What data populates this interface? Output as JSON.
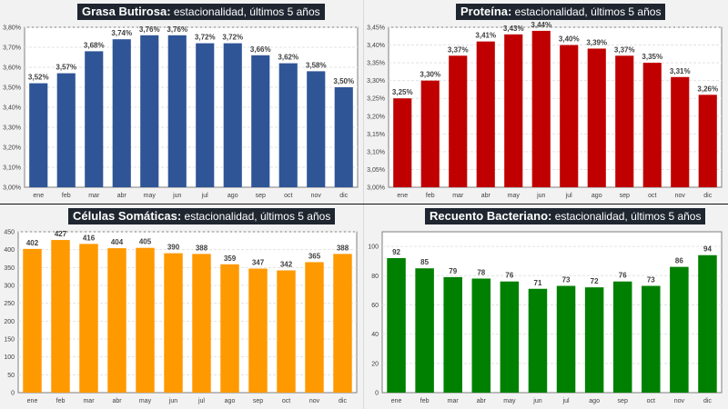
{
  "chart_data": [
    {
      "type": "bar",
      "title_bold": "Grasa Butirosa:",
      "title_rest": " estacionalidad, últimos 5 años",
      "categories": [
        "ene",
        "feb",
        "mar",
        "abr",
        "may",
        "jun",
        "jul",
        "ago",
        "sep",
        "oct",
        "nov",
        "dic"
      ],
      "values": [
        3.52,
        3.57,
        3.68,
        3.74,
        3.76,
        3.76,
        3.72,
        3.72,
        3.66,
        3.62,
        3.58,
        3.5
      ],
      "value_labels": [
        "3,52%",
        "3,57%",
        "3,68%",
        "3,74%",
        "3,76%",
        "3,76%",
        "3,72%",
        "3,72%",
        "3,66%",
        "3,62%",
        "3,58%",
        "3,50%"
      ],
      "yticks": [
        3.0,
        3.1,
        3.2,
        3.3,
        3.4,
        3.5,
        3.6,
        3.7,
        3.8
      ],
      "ytick_labels": [
        "3,00%",
        "3,10%",
        "3,20%",
        "3,30%",
        "3,40%",
        "3,50%",
        "3,60%",
        "3,70%",
        "3,80%"
      ],
      "ylim": [
        3.0,
        3.8
      ],
      "color": "#2f5597",
      "xlabel": "",
      "ylabel": "",
      "grid": true,
      "legend": "none"
    },
    {
      "type": "bar",
      "title_bold": "Proteína:",
      "title_rest": " estacionalidad, últimos 5 años",
      "categories": [
        "ene",
        "feb",
        "mar",
        "abr",
        "may",
        "jun",
        "jul",
        "ago",
        "sep",
        "oct",
        "nov",
        "dic"
      ],
      "values": [
        3.25,
        3.3,
        3.37,
        3.41,
        3.43,
        3.44,
        3.4,
        3.39,
        3.37,
        3.35,
        3.31,
        3.26
      ],
      "value_labels": [
        "3,25%",
        "3,30%",
        "3,37%",
        "3,41%",
        "3,43%",
        "3,44%",
        "3,40%",
        "3,39%",
        "3,37%",
        "3,35%",
        "3,31%",
        "3,26%"
      ],
      "yticks": [
        3.0,
        3.05,
        3.1,
        3.15,
        3.2,
        3.25,
        3.3,
        3.35,
        3.4,
        3.45
      ],
      "ytick_labels": [
        "3,00%",
        "3,05%",
        "3,10%",
        "3,15%",
        "3,20%",
        "3,25%",
        "3,30%",
        "3,35%",
        "3,40%",
        "3,45%"
      ],
      "ylim": [
        3.0,
        3.45
      ],
      "color": "#c00000",
      "xlabel": "",
      "ylabel": "",
      "grid": true,
      "legend": "none"
    },
    {
      "type": "bar",
      "title_bold": "Células Somáticas:",
      "title_rest": " estacionalidad, últimos 5 años",
      "categories": [
        "ene",
        "feb",
        "mar",
        "abr",
        "may",
        "jun",
        "jul",
        "ago",
        "sep",
        "oct",
        "nov",
        "dic"
      ],
      "values": [
        402,
        427,
        416,
        404,
        405,
        390,
        388,
        359,
        347,
        342,
        365,
        388
      ],
      "value_labels": [
        "402",
        "427",
        "416",
        "404",
        "405",
        "390",
        "388",
        "359",
        "347",
        "342",
        "365",
        "388"
      ],
      "yticks": [
        0,
        50,
        100,
        150,
        200,
        250,
        300,
        350,
        400,
        450
      ],
      "ytick_labels": [
        "0",
        "50",
        "100",
        "150",
        "200",
        "250",
        "300",
        "350",
        "400",
        "450"
      ],
      "ylim": [
        0,
        450
      ],
      "color": "#ff9900",
      "xlabel": "",
      "ylabel": "",
      "grid": true,
      "legend": "none"
    },
    {
      "type": "bar",
      "title_bold": "Recuento Bacteriano:",
      "title_rest": " estacionalidad, últimos 5 años",
      "categories": [
        "ene",
        "feb",
        "mar",
        "abr",
        "may",
        "jun",
        "jul",
        "ago",
        "sep",
        "oct",
        "nov",
        "dic"
      ],
      "values": [
        92,
        85,
        79,
        78,
        76,
        71,
        73,
        72,
        76,
        73,
        86,
        94
      ],
      "value_labels": [
        "92",
        "85",
        "79",
        "78",
        "76",
        "71",
        "73",
        "72",
        "76",
        "73",
        "86",
        "94"
      ],
      "yticks": [
        0,
        20,
        40,
        60,
        80,
        100
      ],
      "ytick_labels": [
        "0",
        "20",
        "40",
        "60",
        "80",
        "100"
      ],
      "ylim": [
        0,
        110
      ],
      "color": "#008000",
      "xlabel": "",
      "ylabel": "",
      "grid": true,
      "legend": "none"
    }
  ]
}
